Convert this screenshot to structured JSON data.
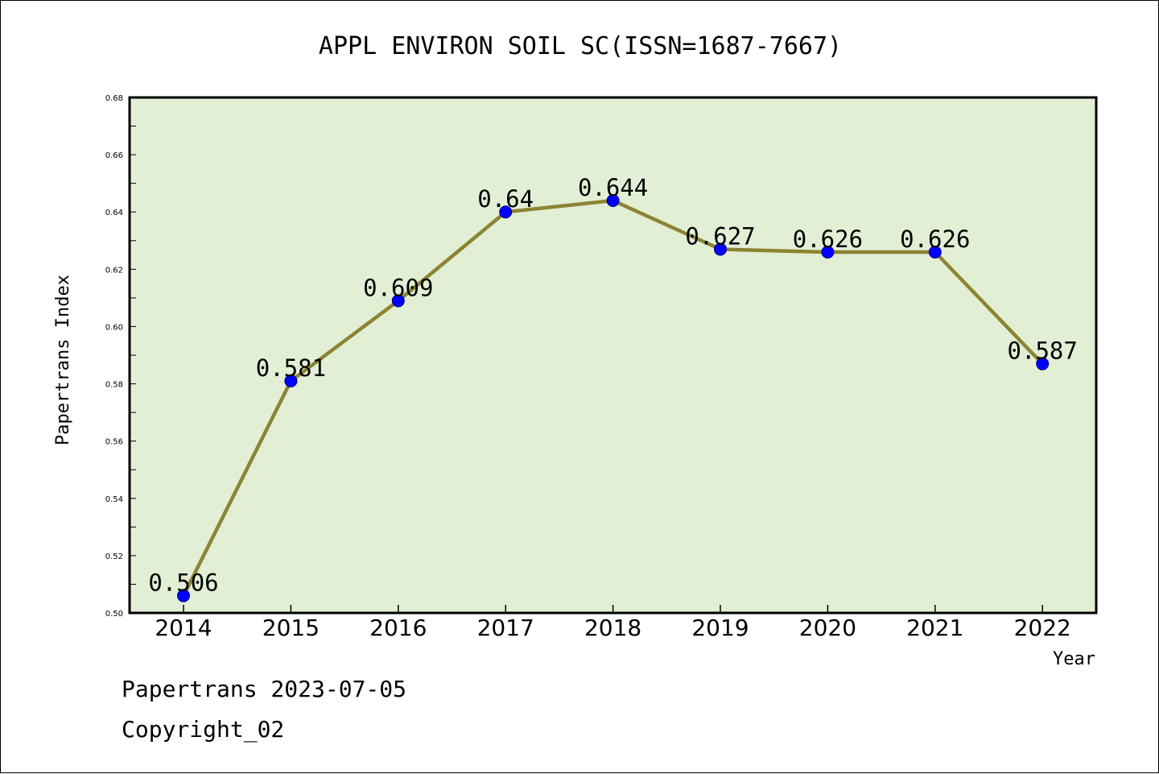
{
  "chart_data": {
    "type": "line",
    "title": "APPL ENVIRON SOIL SC(ISSN=1687-7667)",
    "xlabel": "Year",
    "ylabel": "Papertrans Index",
    "categories": [
      "2014",
      "2015",
      "2016",
      "2017",
      "2018",
      "2019",
      "2020",
      "2021",
      "2022"
    ],
    "values": [
      0.506,
      0.581,
      0.609,
      0.64,
      0.644,
      0.627,
      0.626,
      0.626,
      0.587
    ],
    "data_labels": [
      "0.506",
      "0.581",
      "0.609",
      "0.64",
      "0.644",
      "0.627",
      "0.626",
      "0.626",
      "0.587"
    ],
    "ylim": [
      0.5,
      0.68
    ],
    "yticks": [
      "0.50",
      "0.52",
      "0.54",
      "0.56",
      "0.58",
      "0.60",
      "0.62",
      "0.64",
      "0.66",
      "0.68"
    ],
    "grid": false,
    "colors": {
      "plot_background": "#e2efd5",
      "line": "#8c8433",
      "marker": "#0000ff"
    }
  },
  "footer": {
    "source": "Papertrans 2023-07-05",
    "copyright": "Copyright_02"
  }
}
